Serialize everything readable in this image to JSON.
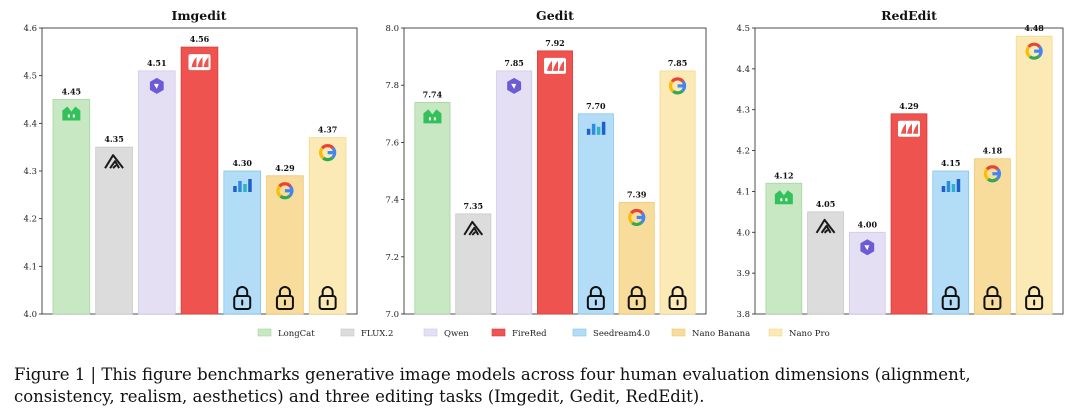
{
  "legend": [
    {
      "key": "longcat",
      "label": "LongCat",
      "color": "#c8e8c3"
    },
    {
      "key": "flux2",
      "label": "FLUX.2",
      "color": "#dcdcdc"
    },
    {
      "key": "qwen",
      "label": "Qwen",
      "color": "#e4dff2"
    },
    {
      "key": "firered",
      "label": "FireRed",
      "color": "#ef5350"
    },
    {
      "key": "seedream",
      "label": "Seedream4.0",
      "color": "#b3dcf7"
    },
    {
      "key": "nanobanana",
      "label": "Nano Banana",
      "color": "#f8dc9c"
    },
    {
      "key": "nanopro",
      "label": "Nano Pro",
      "color": "#fbe9b6"
    }
  ],
  "caption": "Figure 1 | This figure benchmarks generative image models across four human evaluation dimensions (alignment, consistency, realism, aesthetics) and three editing tasks (Imgedit, Gedit, RedEdit).",
  "chart_data": [
    {
      "type": "bar",
      "title": "Imgedit",
      "categories": [
        "LongCat",
        "FLUX.2",
        "Qwen",
        "FireRed",
        "Seedream4.0",
        "Nano Banana",
        "Nano Pro"
      ],
      "values": [
        4.45,
        4.35,
        4.51,
        4.56,
        4.3,
        4.29,
        4.37
      ],
      "value_labels": [
        "4.45",
        "4.35",
        "4.51",
        "4.56",
        "4.30",
        "4.29",
        "4.37"
      ],
      "icons": [
        "longcat-icon",
        "flux-icon",
        "qwen-icon",
        "firered-icon",
        "seedream-icon",
        "google-icon",
        "google-icon"
      ],
      "locked": [
        false,
        false,
        false,
        false,
        true,
        true,
        true
      ],
      "ylim": [
        4.0,
        4.6
      ],
      "yticks": [
        "4.0",
        "4.1",
        "4.2",
        "4.3",
        "4.4",
        "4.5",
        "4.6"
      ],
      "xlabel": "",
      "ylabel": ""
    },
    {
      "type": "bar",
      "title": "Gedit",
      "categories": [
        "LongCat",
        "FLUX.2",
        "Qwen",
        "FireRed",
        "Seedream4.0",
        "Nano Banana",
        "Nano Pro"
      ],
      "values": [
        7.74,
        7.35,
        7.85,
        7.92,
        7.7,
        7.39,
        7.85
      ],
      "value_labels": [
        "7.74",
        "7.35",
        "7.85",
        "7.92",
        "7.70",
        "7.39",
        "7.85"
      ],
      "icons": [
        "longcat-icon",
        "flux-icon",
        "qwen-icon",
        "firered-icon",
        "seedream-icon",
        "google-icon",
        "google-icon"
      ],
      "locked": [
        false,
        false,
        false,
        false,
        true,
        true,
        true
      ],
      "ylim": [
        7.0,
        8.0
      ],
      "yticks": [
        "7.0",
        "7.2",
        "7.4",
        "7.6",
        "7.8",
        "8.0"
      ],
      "xlabel": "",
      "ylabel": ""
    },
    {
      "type": "bar",
      "title": "RedEdit",
      "categories": [
        "LongCat",
        "FLUX.2",
        "Qwen",
        "FireRed",
        "Seedream4.0",
        "Nano Banana",
        "Nano Pro"
      ],
      "values": [
        4.12,
        4.05,
        4.0,
        4.29,
        4.15,
        4.18,
        4.48
      ],
      "value_labels": [
        "4.12",
        "4.05",
        "4.00",
        "4.29",
        "4.15",
        "4.18",
        "4.48"
      ],
      "icons": [
        "longcat-icon",
        "flux-icon",
        "qwen-icon",
        "firered-icon",
        "seedream-icon",
        "google-icon",
        "google-icon"
      ],
      "locked": [
        false,
        false,
        false,
        false,
        true,
        true,
        true
      ],
      "ylim": [
        3.8,
        4.5
      ],
      "yticks": [
        "3.8",
        "3.9",
        "4.0",
        "4.1",
        "4.2",
        "4.3",
        "4.4",
        "4.5"
      ],
      "xlabel": "",
      "ylabel": ""
    }
  ]
}
